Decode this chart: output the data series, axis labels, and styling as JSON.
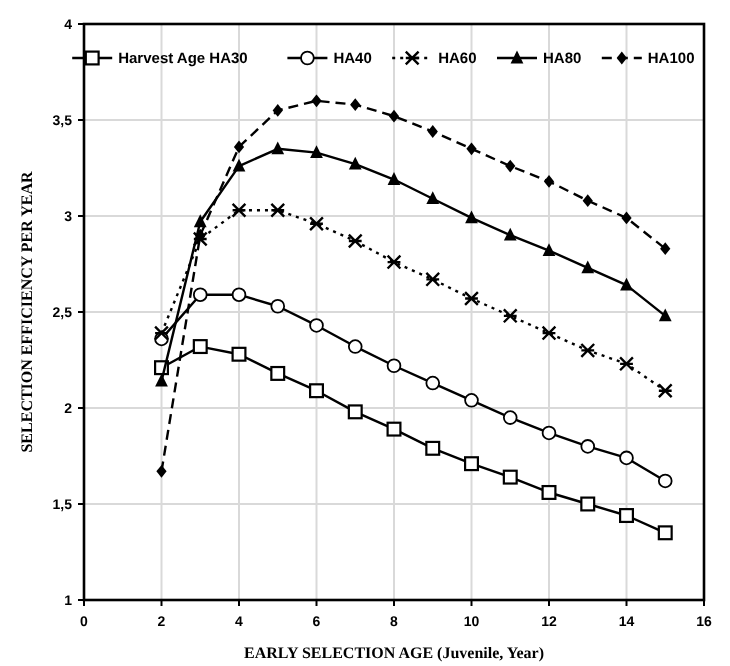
{
  "chart_data": {
    "type": "line",
    "xlabel": "EARLY SELECTION AGE (Juvenile, Year)",
    "ylabel": "SELECTION EFFICIENCY PER YEAR",
    "x": [
      2,
      3,
      4,
      5,
      6,
      7,
      8,
      9,
      10,
      11,
      12,
      13,
      14,
      15
    ],
    "xlim": [
      0,
      16
    ],
    "xticks": [
      0,
      2,
      4,
      6,
      8,
      10,
      12,
      14,
      16
    ],
    "ylim": [
      1,
      4
    ],
    "yticks": [
      {
        "value": 1,
        "label": "1"
      },
      {
        "value": 1.5,
        "label": "1,5"
      },
      {
        "value": 2,
        "label": "2"
      },
      {
        "value": 2.5,
        "label": "2,5"
      },
      {
        "value": 3,
        "label": "3"
      },
      {
        "value": 3.5,
        "label": "3,5"
      },
      {
        "value": 4,
        "label": "4"
      }
    ],
    "grid": true,
    "legend": "top",
    "series": [
      {
        "name": "Harvest Age HA30",
        "color": "#000000",
        "marker": "square",
        "line_style": "solid",
        "values": [
          2.21,
          2.32,
          2.28,
          2.18,
          2.09,
          1.98,
          1.89,
          1.79,
          1.71,
          1.64,
          1.56,
          1.5,
          1.44,
          1.35
        ]
      },
      {
        "name": "HA40",
        "color": "#000000",
        "marker": "circle",
        "line_style": "solid",
        "values": [
          2.36,
          2.59,
          2.59,
          2.53,
          2.43,
          2.32,
          2.22,
          2.13,
          2.04,
          1.95,
          1.87,
          1.8,
          1.74,
          1.62
        ]
      },
      {
        "name": "HA60",
        "color": "#000000",
        "marker": "cross",
        "line_style": "dotted",
        "values": [
          2.39,
          2.88,
          3.03,
          3.03,
          2.96,
          2.87,
          2.76,
          2.67,
          2.57,
          2.48,
          2.39,
          2.3,
          2.23,
          2.09
        ]
      },
      {
        "name": "HA80",
        "color": "#000000",
        "marker": "triangle",
        "line_style": "solid",
        "values": [
          2.14,
          2.97,
          3.26,
          3.35,
          3.33,
          3.27,
          3.19,
          3.09,
          2.99,
          2.9,
          2.82,
          2.73,
          2.64,
          2.48
        ]
      },
      {
        "name": "HA100",
        "color": "#000000",
        "marker": "diamond",
        "line_style": "dashed",
        "values": [
          1.67,
          2.9,
          3.36,
          3.55,
          3.6,
          3.58,
          3.52,
          3.44,
          3.35,
          3.26,
          3.18,
          3.08,
          2.99,
          2.83
        ]
      }
    ]
  }
}
